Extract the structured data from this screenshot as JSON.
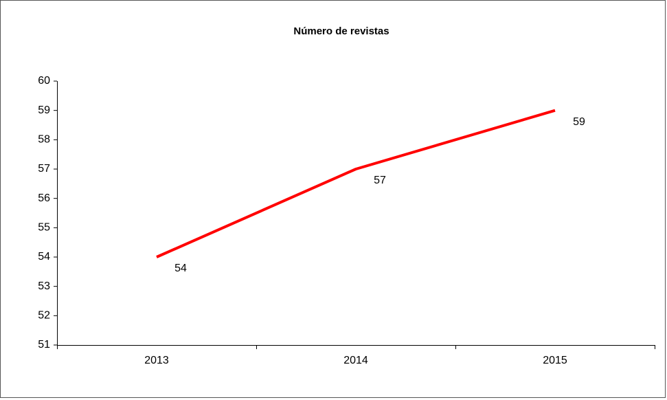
{
  "chart_data": {
    "type": "line",
    "title": "Número de revistas",
    "categories": [
      "2013",
      "2014",
      "2015"
    ],
    "series": [
      {
        "name": "Número de revistas",
        "color": "#ff0000",
        "values": [
          54,
          57,
          59
        ]
      }
    ],
    "ylim": [
      51,
      60
    ],
    "yticks": [
      51,
      52,
      53,
      54,
      55,
      56,
      57,
      58,
      59,
      60
    ],
    "grid": false,
    "data_labels": true
  }
}
